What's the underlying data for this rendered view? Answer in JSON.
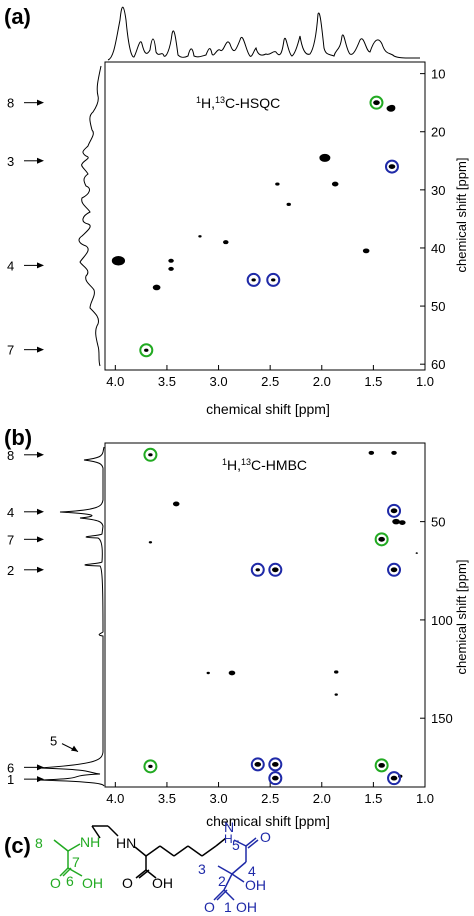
{
  "panels": {
    "a": {
      "label": "(a)"
    },
    "b": {
      "label": "(b)"
    },
    "c": {
      "label": "(c)"
    }
  },
  "chart_data": [
    {
      "type": "scatter",
      "panel": "a",
      "title": "¹H,¹³C-HSQC",
      "title_parts": {
        "sup1": "1",
        "h": "H,",
        "sup2": "13",
        "rest": "C-HSQC"
      },
      "xlabel": "chemical shift [ppm]",
      "ylabel": "chemical shift [ppm]",
      "xlim": [
        4.1,
        1.0
      ],
      "ylim": [
        61,
        8
      ],
      "x_ticks": [
        4.0,
        3.5,
        3.0,
        2.5,
        2.0,
        1.5,
        1.0
      ],
      "x_tick_labels": [
        "4.0",
        "3.5",
        "3.0",
        "2.5",
        "2.0",
        "1.5",
        "1.0"
      ],
      "y_ticks": [
        10,
        20,
        30,
        40,
        50,
        60
      ],
      "y_tick_labels": [
        "10",
        "20",
        "30",
        "40",
        "50",
        "60"
      ],
      "grid": false,
      "peaks": [
        {
          "x": 1.47,
          "y": 15,
          "size": 3
        },
        {
          "x": 1.33,
          "y": 16,
          "size": 4
        },
        {
          "x": 1.32,
          "y": 15.8,
          "size": 3
        },
        {
          "x": 1.97,
          "y": 24.5,
          "size": 5
        },
        {
          "x": 1.32,
          "y": 26,
          "size": 3
        },
        {
          "x": 2.43,
          "y": 29,
          "size": 2
        },
        {
          "x": 1.87,
          "y": 29,
          "size": 3
        },
        {
          "x": 2.32,
          "y": 32.5,
          "size": 2
        },
        {
          "x": 3.18,
          "y": 38,
          "size": 1.5
        },
        {
          "x": 2.93,
          "y": 39,
          "size": 2.5
        },
        {
          "x": 1.57,
          "y": 40.5,
          "size": 3
        },
        {
          "x": 3.97,
          "y": 42.2,
          "size": 6
        },
        {
          "x": 3.46,
          "y": 42.2,
          "size": 2.5
        },
        {
          "x": 3.46,
          "y": 43.6,
          "size": 2.5
        },
        {
          "x": 3.6,
          "y": 46.8,
          "size": 3.5
        },
        {
          "x": 2.66,
          "y": 45.5,
          "size": 2
        },
        {
          "x": 2.47,
          "y": 45.5,
          "size": 2
        },
        {
          "x": 3.7,
          "y": 57.6,
          "size": 2
        }
      ],
      "circles": [
        {
          "x": 1.47,
          "y": 15,
          "color": "green"
        },
        {
          "x": 1.32,
          "y": 26,
          "color": "blue"
        },
        {
          "x": 2.66,
          "y": 45.5,
          "color": "blue"
        },
        {
          "x": 2.47,
          "y": 45.5,
          "color": "blue"
        },
        {
          "x": 3.7,
          "y": 57.6,
          "color": "green"
        }
      ],
      "annotations": [
        {
          "text": "8",
          "y": 15
        },
        {
          "text": "3",
          "y": 25
        },
        {
          "text": "4",
          "y": 43
        },
        {
          "text": "7",
          "y": 57.5
        }
      ]
    },
    {
      "type": "scatter",
      "panel": "b",
      "title": "¹H,¹³C-HMBC",
      "title_parts": {
        "sup1": "1",
        "h": "H,",
        "sup2": "13",
        "rest": "C-HMBC"
      },
      "xlabel": "chemical shift [ppm]",
      "ylabel": "chemical shift [ppm]",
      "xlim": [
        4.1,
        1.0
      ],
      "ylim": [
        185,
        10
      ],
      "x_ticks": [
        4.0,
        3.5,
        3.0,
        2.5,
        2.0,
        1.5,
        1.0
      ],
      "x_tick_labels": [
        "4.0",
        "3.5",
        "3.0",
        "2.5",
        "2.0",
        "1.5",
        "1.0"
      ],
      "y_ticks": [
        50,
        100,
        150
      ],
      "y_tick_labels": [
        "50",
        "100",
        "150"
      ],
      "grid": false,
      "peaks": [
        {
          "x": 3.66,
          "y": 16,
          "size": 2
        },
        {
          "x": 1.52,
          "y": 15,
          "size": 2.5
        },
        {
          "x": 1.3,
          "y": 15,
          "size": 2.5
        },
        {
          "x": 3.41,
          "y": 41,
          "size": 3
        },
        {
          "x": 1.3,
          "y": 44.5,
          "size": 3
        },
        {
          "x": 1.28,
          "y": 50,
          "size": 3.5
        },
        {
          "x": 1.22,
          "y": 50.5,
          "size": 3
        },
        {
          "x": 1.42,
          "y": 59,
          "size": 3
        },
        {
          "x": 3.66,
          "y": 60.5,
          "size": 1.5
        },
        {
          "x": 1.08,
          "y": 66,
          "size": 1
        },
        {
          "x": 2.62,
          "y": 74.5,
          "size": 2
        },
        {
          "x": 2.45,
          "y": 74.5,
          "size": 3
        },
        {
          "x": 1.3,
          "y": 74.5,
          "size": 3
        },
        {
          "x": 3.1,
          "y": 127,
          "size": 1.5
        },
        {
          "x": 2.87,
          "y": 127,
          "size": 3
        },
        {
          "x": 1.86,
          "y": 126.5,
          "size": 2
        },
        {
          "x": 1.86,
          "y": 138,
          "size": 1.5
        },
        {
          "x": 3.66,
          "y": 174.5,
          "size": 2
        },
        {
          "x": 2.62,
          "y": 173.5,
          "size": 3
        },
        {
          "x": 2.45,
          "y": 173.5,
          "size": 3
        },
        {
          "x": 2.45,
          "y": 180.5,
          "size": 3
        },
        {
          "x": 1.42,
          "y": 174,
          "size": 3
        },
        {
          "x": 1.3,
          "y": 180.5,
          "size": 3
        },
        {
          "x": 1.24,
          "y": 179.5,
          "size": 2
        }
      ],
      "circles": [
        {
          "x": 3.66,
          "y": 16,
          "color": "green"
        },
        {
          "x": 1.3,
          "y": 44.5,
          "color": "blue"
        },
        {
          "x": 1.42,
          "y": 59,
          "color": "green"
        },
        {
          "x": 2.62,
          "y": 74.5,
          "color": "blue"
        },
        {
          "x": 2.45,
          "y": 74.5,
          "color": "blue"
        },
        {
          "x": 1.3,
          "y": 74.5,
          "color": "blue"
        },
        {
          "x": 3.66,
          "y": 174.5,
          "color": "green"
        },
        {
          "x": 2.62,
          "y": 173.5,
          "color": "blue"
        },
        {
          "x": 2.45,
          "y": 173.5,
          "color": "blue"
        },
        {
          "x": 2.45,
          "y": 180.5,
          "color": "blue"
        },
        {
          "x": 1.42,
          "y": 174,
          "color": "green"
        },
        {
          "x": 1.3,
          "y": 180.5,
          "color": "blue"
        }
      ],
      "annotations": [
        {
          "text": "8",
          "y": 16
        },
        {
          "text": "4",
          "y": 45
        },
        {
          "text": "7",
          "y": 59
        },
        {
          "text": "2",
          "y": 74.5
        },
        {
          "text": "5",
          "y": 167,
          "diagonal": true
        },
        {
          "text": "6",
          "y": 175
        },
        {
          "text": "1",
          "y": 181
        }
      ]
    }
  ],
  "structure": {
    "green_labels": {
      "n8": "8",
      "n7": "7",
      "n6": "6",
      "nh": "NH",
      "o": "O",
      "oh": "OH"
    },
    "black_labels": {
      "hn": "HN",
      "o": "O",
      "oh": "OH"
    },
    "blue_labels": {
      "n3": "3",
      "n4": "4",
      "n5": "5",
      "n2": "2",
      "n1": "1",
      "oh_mid": "OH",
      "o_left": "O",
      "oh_bottom": "OH",
      "o_right": "O",
      "hn": "N",
      "h": "H"
    }
  },
  "colors": {
    "green": "#22aa22",
    "blue": "#1f2aa8",
    "black": "#000000"
  }
}
